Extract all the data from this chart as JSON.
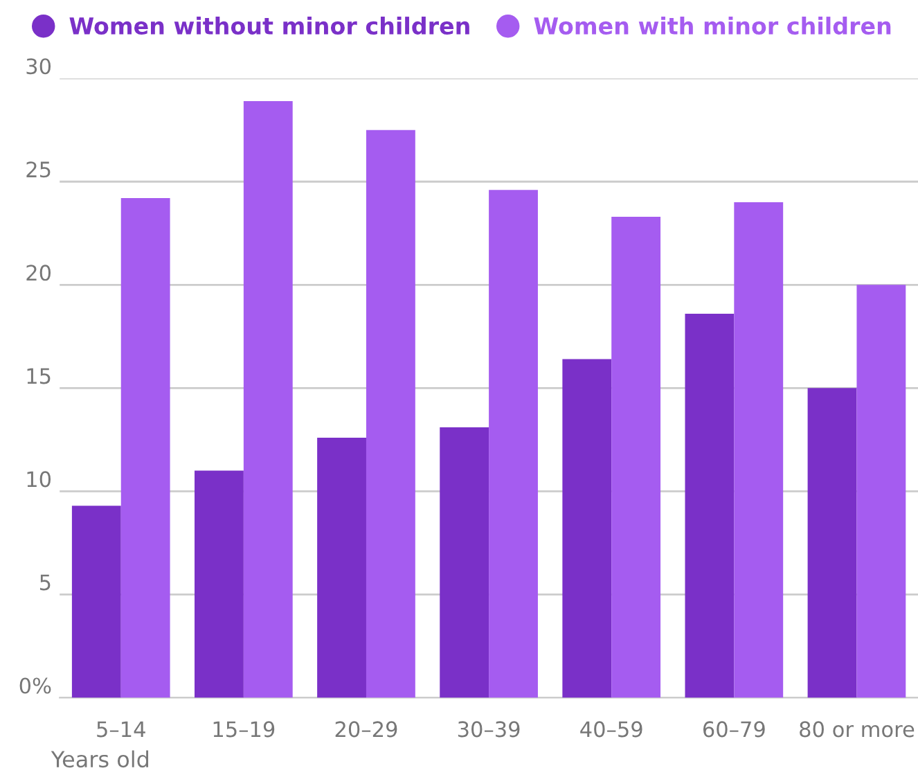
{
  "chart_data": {
    "type": "bar",
    "xlabel": "Years old",
    "categories": [
      "5–14",
      "15–19",
      "20–29",
      "30–39",
      "40–59",
      "60–79",
      "80 or more"
    ],
    "series": [
      {
        "name": "Women without minor children",
        "color": "#7a30c8",
        "values": [
          9.3,
          11.0,
          12.6,
          13.1,
          16.4,
          18.6,
          15.0
        ]
      },
      {
        "name": "Women with minor children",
        "color": "#a55cf0",
        "values": [
          24.2,
          28.9,
          27.5,
          24.6,
          23.3,
          24.0,
          20.0
        ]
      }
    ],
    "ylim": [
      0,
      30
    ],
    "yticks": [
      {
        "value": 0,
        "label": "0%"
      },
      5,
      10,
      15,
      20,
      25,
      30
    ],
    "grid": "y",
    "legend": "top left"
  }
}
